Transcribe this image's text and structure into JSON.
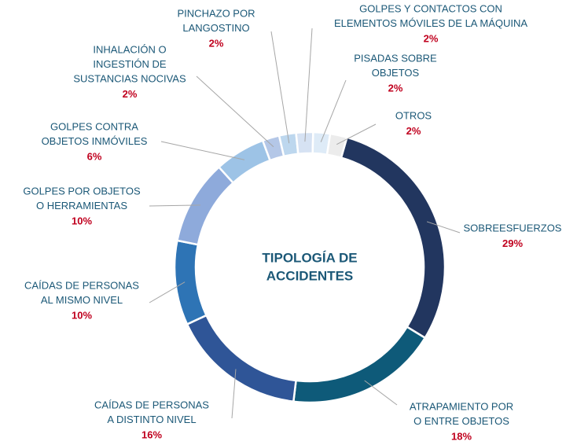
{
  "chart_data": {
    "type": "donut",
    "title": [
      "TIPOLOGÍA DE",
      "ACCIDENTES"
    ],
    "categories": [
      [
        "SOBREESFUERZOS"
      ],
      [
        "ATRAPAMIENTO POR",
        "O ENTRE OBJETOS"
      ],
      [
        "CAÍDAS DE PERSONAS",
        "A DISTINTO NIVEL"
      ],
      [
        "CAÍDAS DE PERSONAS",
        "AL MISMO NIVEL"
      ],
      [
        "GOLPES POR OBJETOS",
        "O HERRAMIENTAS"
      ],
      [
        "GOLPES CONTRA",
        "OBJETOS INMÓVILES"
      ],
      [
        "INHALACIÓN O",
        "INGESTIÓN DE",
        "SUSTANCIAS NOCIVAS"
      ],
      [
        "PINCHAZO POR",
        "LANGOSTINO"
      ],
      [
        "GOLPES Y CONTACTOS CON",
        "ELEMENTOS MÓVILES DE LA MÁQUINA"
      ],
      [
        "PISADAS SOBRE",
        "OBJETOS"
      ],
      [
        "OTROS"
      ]
    ],
    "values": [
      29,
      18,
      16,
      10,
      10,
      6,
      2,
      2,
      2,
      2,
      2
    ],
    "value_labels": [
      "29%",
      "18%",
      "16%",
      "10%",
      "10%",
      "6%",
      "2%",
      "2%",
      "2%",
      "2%",
      "2%"
    ],
    "colors": [
      "#22365f",
      "#0e5a79",
      "#2f5597",
      "#2e74b5",
      "#8eaadb",
      "#9dc3e6",
      "#b4c7e7",
      "#bdd7ee",
      "#d6e2f3",
      "#deebf7",
      "#ececec"
    ]
  }
}
